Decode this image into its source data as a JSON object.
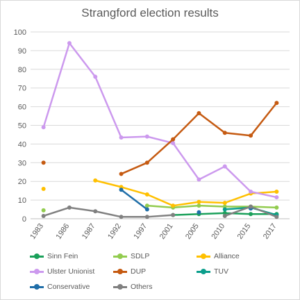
{
  "chart_data": {
    "type": "line",
    "title": "Strangford election results",
    "xlabel": "",
    "ylabel": "",
    "categories": [
      "1983",
      "1986",
      "1987",
      "1992",
      "1997",
      "2001",
      "2005",
      "2010",
      "2015",
      "2017"
    ],
    "ylim": [
      0,
      100
    ],
    "yticks": [
      0,
      10,
      20,
      30,
      40,
      50,
      60,
      70,
      80,
      90,
      100
    ],
    "grid": true,
    "legend_position": "bottom",
    "series": [
      {
        "name": "Sinn Fein",
        "color": "#1aa05a",
        "values": [
          null,
          null,
          null,
          null,
          null,
          2.0,
          2.5,
          3.0,
          2.5,
          2.5
        ]
      },
      {
        "name": "SDLP",
        "color": "#92cc4f",
        "values": [
          4.5,
          null,
          null,
          null,
          7.0,
          6.0,
          7.0,
          6.5,
          6.5,
          6.0
        ]
      },
      {
        "name": "Alliance",
        "color": "#ffc000",
        "values": [
          16.0,
          null,
          20.5,
          17.0,
          13.0,
          7.0,
          9.0,
          8.5,
          13.5,
          14.5
        ]
      },
      {
        "name": "Ulster Unionist",
        "color": "#cc99ee",
        "values": [
          49.0,
          94.0,
          76.0,
          43.5,
          44.0,
          40.5,
          21.0,
          28.0,
          14.5,
          11.5
        ]
      },
      {
        "name": "DUP",
        "color": "#c55a11",
        "values": [
          30.0,
          null,
          null,
          24.0,
          30.0,
          42.5,
          56.5,
          46.0,
          44.5,
          62.0
        ]
      },
      {
        "name": "TUV",
        "color": "#0b9e8c",
        "values": [
          null,
          null,
          null,
          null,
          null,
          null,
          null,
          5.0,
          6.0,
          2.0
        ]
      },
      {
        "name": "Conservative",
        "color": "#1f6ea8",
        "values": [
          null,
          null,
          null,
          15.5,
          5.0,
          null,
          3.5,
          null,
          5.5,
          null
        ]
      },
      {
        "name": "Others",
        "color": "#808080",
        "values": [
          1.5,
          6.0,
          4.0,
          1.0,
          1.0,
          2.0,
          null,
          1.5,
          6.5,
          1.0
        ]
      }
    ]
  }
}
